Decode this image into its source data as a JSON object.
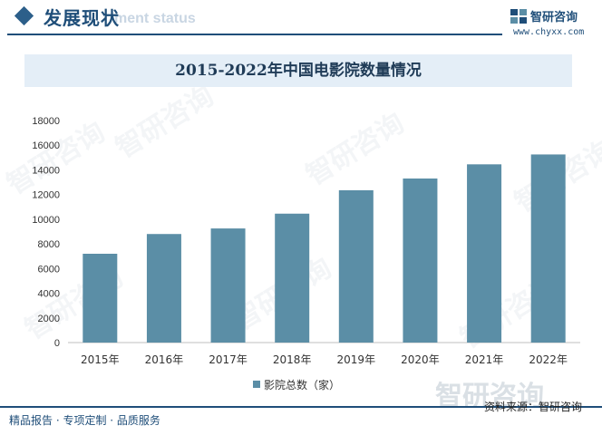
{
  "header": {
    "title": "发展现状",
    "ghost_text": "ment status",
    "brand_name": "智研咨询",
    "brand_url": "www.chyxx.com"
  },
  "chart_data": {
    "type": "bar",
    "title": "2015-2022年中国电影院数量情况",
    "categories": [
      "2015年",
      "2016年",
      "2017年",
      "2018年",
      "2019年",
      "2020年",
      "2021年",
      "2022年"
    ],
    "series": [
      {
        "name": "影院总数（家）",
        "values": [
          7200,
          8800,
          9250,
          10450,
          12350,
          13300,
          14450,
          15250
        ],
        "color": "#5b8ea6"
      }
    ],
    "xlabel": "",
    "ylabel": "",
    "ylim": [
      0,
      18000
    ],
    "yticks": [
      "0",
      "2000",
      "4000",
      "6000",
      "8000",
      "10000",
      "12000",
      "14000",
      "16000",
      "18000"
    ],
    "grid": false,
    "legend_position": "bottom"
  },
  "footer": {
    "left_text": "精品报告 · 专项定制 · 品质服务",
    "watermark": "智研咨询",
    "source": "资料来源：智研咨询"
  },
  "watermark_text": "智研咨询"
}
